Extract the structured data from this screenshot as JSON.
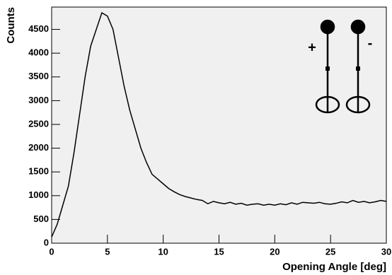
{
  "chart_data": {
    "type": "line",
    "x_label": "Opening Angle  [deg]",
    "y_label": "Counts",
    "annotations": [
      "+",
      "-"
    ],
    "x": [
      0,
      0.5,
      1,
      1.5,
      2,
      2.5,
      3,
      3.5,
      4,
      4.5,
      5,
      5.5,
      6,
      6.5,
      7,
      7.5,
      8,
      8.5,
      9,
      9.5,
      10,
      10.5,
      11,
      11.5,
      12,
      12.5,
      13,
      13.5,
      14,
      14.5,
      15,
      15.5,
      16,
      16.5,
      17,
      17.5,
      18,
      18.5,
      19,
      19.5,
      20,
      20.5,
      21,
      21.5,
      22,
      22.5,
      23,
      23.5,
      24,
      24.5,
      25,
      25.5,
      26,
      26.5,
      27,
      27.5,
      28,
      28.5,
      29,
      29.5,
      30
    ],
    "series": [
      {
        "color": "#000000",
        "values": [
          130,
          400,
          800,
          1200,
          1900,
          2700,
          3500,
          4150,
          4500,
          4850,
          4780,
          4500,
          3900,
          3300,
          2800,
          2400,
          2000,
          1700,
          1450,
          1350,
          1250,
          1150,
          1080,
          1020,
          980,
          950,
          920,
          900,
          830,
          880,
          850,
          830,
          860,
          820,
          840,
          800,
          820,
          830,
          800,
          820,
          800,
          830,
          810,
          850,
          820,
          860,
          850,
          840,
          860,
          830,
          820,
          840,
          870,
          850,
          900,
          860,
          880,
          850,
          870,
          900,
          880
        ]
      }
    ],
    "xlim": [
      0,
      30
    ],
    "xticks": [
      0,
      5,
      10,
      15,
      20,
      25,
      30
    ],
    "ylim": [
      0,
      4970
    ],
    "yticks": [
      0,
      500,
      1000,
      1500,
      2000,
      2500,
      3000,
      3500,
      4000,
      4500
    ],
    "grid": false
  }
}
